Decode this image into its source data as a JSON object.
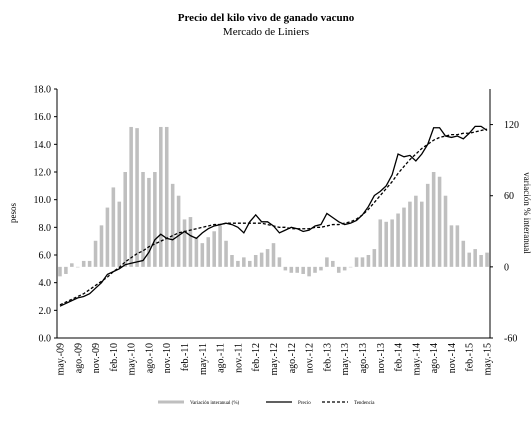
{
  "chart_data": {
    "type": "combo",
    "title": "Precio del kilo vivo de ganado vacuno",
    "subtitle": "Mercado de Liniers",
    "y_label": "pesos",
    "y2_label": "variación % interanual",
    "categories": [
      "may.-09",
      null,
      null,
      "ago.-09",
      null,
      null,
      "nov.-09",
      null,
      null,
      "feb.-10",
      null,
      null,
      "may.-10",
      null,
      null,
      "ago.-10",
      null,
      null,
      "nov.-10",
      null,
      null,
      "feb.-11",
      null,
      null,
      "may.-11",
      null,
      null,
      "ago.-11",
      null,
      null,
      "nov.-11",
      null,
      null,
      "feb.-12",
      null,
      null,
      "may.-12",
      null,
      null,
      "ago.-12",
      null,
      null,
      "nov.-12",
      null,
      null,
      "feb.-13",
      null,
      null,
      "may.-13",
      null,
      null,
      "ago.-13",
      null,
      null,
      "nov.-13",
      null,
      null,
      "feb.-14",
      null,
      null,
      "may.-14",
      null,
      null,
      "ago.-14",
      null,
      null,
      "nov.-14",
      null,
      null,
      "feb.-15",
      null,
      null,
      "may.-15"
    ],
    "ylim": [
      0,
      18
    ],
    "yticks": [
      {
        "value": 0,
        "label": "0.0"
      },
      {
        "value": 2,
        "label": "2.0"
      },
      {
        "value": 4,
        "label": "4.0"
      },
      {
        "value": 6,
        "label": "6.0"
      },
      {
        "value": 8,
        "label": "8.0"
      },
      {
        "value": 10,
        "label": "10.0"
      },
      {
        "value": 12,
        "label": "12.0"
      },
      {
        "value": 14,
        "label": "14.0"
      },
      {
        "value": 16,
        "label": "16.0"
      },
      {
        "value": 18,
        "label": "18.0"
      }
    ],
    "y2lim": [
      -60,
      150
    ],
    "y2ticks": [
      -60,
      0,
      60,
      120
    ],
    "grid": false,
    "legend": "bottom",
    "series": [
      {
        "name": "Variación interanual (%)",
        "type": "bar",
        "axis": "y2",
        "color": "#bfbfbf",
        "values": [
          -8,
          -6,
          3,
          0,
          5,
          5,
          22,
          35,
          50,
          67,
          55,
          80,
          118,
          117,
          80,
          75,
          80,
          118,
          118,
          70,
          60,
          40,
          42,
          25,
          20,
          25,
          30,
          35,
          22,
          10,
          5,
          8,
          5,
          10,
          12,
          15,
          20,
          8,
          -3,
          -5,
          -5,
          -6,
          -8,
          -5,
          -3,
          8,
          5,
          -5,
          -3,
          0,
          8,
          8,
          10,
          15,
          40,
          38,
          40,
          45,
          50,
          55,
          60,
          55,
          70,
          80,
          76,
          60,
          35,
          35,
          22,
          12,
          15,
          10,
          12
        ]
      },
      {
        "name": "Precio",
        "type": "line",
        "color": "#000000",
        "dashed": false,
        "values": [
          2.3,
          2.5,
          2.7,
          2.9,
          3.0,
          3.2,
          3.6,
          4.0,
          4.6,
          4.8,
          5.0,
          5.3,
          5.4,
          5.5,
          5.6,
          6.2,
          7.1,
          7.5,
          7.2,
          7.1,
          7.4,
          7.7,
          7.4,
          7.2,
          7.6,
          7.9,
          8.1,
          8.2,
          8.3,
          8.2,
          8.0,
          7.6,
          8.4,
          8.9,
          8.4,
          8.4,
          8.1,
          7.6,
          7.8,
          8.0,
          7.9,
          7.7,
          7.8,
          8.1,
          8.2,
          9.0,
          8.7,
          8.4,
          8.2,
          8.3,
          8.5,
          8.9,
          9.5,
          10.3,
          10.6,
          11.0,
          11.8,
          13.3,
          13.1,
          13.2,
          12.8,
          13.3,
          14.0,
          15.2,
          15.2,
          14.6,
          14.5,
          14.6,
          14.4,
          14.8,
          15.3,
          15.3,
          15.0
        ]
      },
      {
        "name": "Tendencia",
        "type": "line",
        "color": "#000000",
        "dashed": true,
        "values": [
          2.4,
          2.6,
          2.8,
          3.0,
          3.2,
          3.5,
          3.8,
          4.1,
          4.4,
          4.8,
          5.1,
          5.5,
          5.8,
          6.1,
          6.3,
          6.6,
          6.8,
          7.0,
          7.2,
          7.4,
          7.6,
          7.7,
          7.8,
          7.9,
          8.0,
          8.1,
          8.2,
          8.2,
          8.3,
          8.3,
          8.3,
          8.3,
          8.3,
          8.3,
          8.3,
          8.2,
          8.1,
          8.0,
          8.0,
          7.9,
          7.9,
          7.9,
          7.9,
          8.0,
          8.0,
          8.1,
          8.2,
          8.2,
          8.3,
          8.4,
          8.6,
          8.9,
          9.3,
          9.8,
          10.3,
          10.8,
          11.3,
          11.9,
          12.4,
          12.9,
          13.3,
          13.7,
          14.0,
          14.3,
          14.5,
          14.6,
          14.7,
          14.7,
          14.8,
          14.8,
          14.9,
          15.0,
          15.1
        ]
      }
    ]
  }
}
